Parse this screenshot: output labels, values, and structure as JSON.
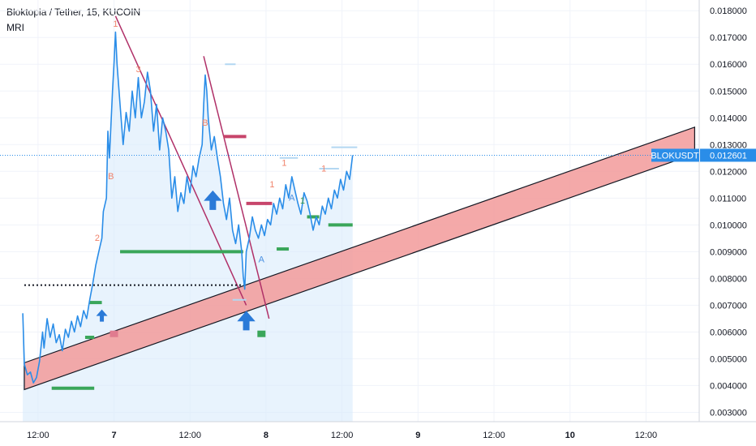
{
  "header": {
    "title": "Bloktopia / Tether, 15, KUCOIN",
    "indicator": "MRI"
  },
  "colors": {
    "price_line": "#2a8de8",
    "area_fill": "#d9ebfb",
    "channel_fill": "#f29a9a",
    "trendline": "#b03068",
    "green_level": "#3aa65a",
    "pink_level": "#c7456b",
    "light_blue_level": "#b3d7f2",
    "price_tag": "#2a8de8",
    "arrow_blue": "#2a7ad8",
    "label_orange": "#f0826a",
    "label_green": "#3a9a4a",
    "label_blue": "#4a90e2"
  },
  "price_tag": {
    "symbol": "BLOKUSDT",
    "value": "0.012601"
  },
  "chart_data": {
    "type": "line",
    "title": "Bloktopia / Tether, 15, KUCOIN",
    "xlabel": "",
    "ylabel": "",
    "x_ticks": [
      "12:00",
      "7",
      "12:00",
      "8",
      "12:00",
      "9",
      "12:00",
      "10",
      "12:00"
    ],
    "x_ticks_bold": [
      false,
      true,
      false,
      true,
      false,
      true,
      false,
      true,
      false
    ],
    "x_tick_values": [
      0.5,
      1.0,
      1.5,
      2.0,
      2.5,
      3.0,
      3.5,
      4.0,
      4.5
    ],
    "x_range": [
      0.25,
      4.85
    ],
    "y_ticks": [
      "0.018000",
      "0.017000",
      "0.016000",
      "0.015000",
      "0.014000",
      "0.013000",
      "0.012000",
      "0.011000",
      "0.010000",
      "0.009000",
      "0.008000",
      "0.007000",
      "0.006000",
      "0.005000",
      "0.004000",
      "0.003000"
    ],
    "ylim": [
      0.00265,
      0.0184
    ],
    "grid": true,
    "last_price": 0.012601,
    "series": [
      {
        "values": [
          [
            0.4,
            0.0067
          ],
          [
            0.41,
            0.0048
          ],
          [
            0.43,
            0.0044
          ],
          [
            0.45,
            0.0045
          ],
          [
            0.47,
            0.0041
          ],
          [
            0.49,
            0.0043
          ],
          [
            0.51,
            0.0049
          ],
          [
            0.53,
            0.006
          ],
          [
            0.54,
            0.0054
          ],
          [
            0.56,
            0.0065
          ],
          [
            0.58,
            0.0058
          ],
          [
            0.6,
            0.0063
          ],
          [
            0.62,
            0.0056
          ],
          [
            0.64,
            0.0059
          ],
          [
            0.66,
            0.0053
          ],
          [
            0.68,
            0.0061
          ],
          [
            0.7,
            0.0058
          ],
          [
            0.72,
            0.0064
          ],
          [
            0.74,
            0.006
          ],
          [
            0.76,
            0.0066
          ],
          [
            0.78,
            0.0062
          ],
          [
            0.8,
            0.0068
          ],
          [
            0.82,
            0.0065
          ],
          [
            0.84,
            0.0072
          ],
          [
            0.86,
            0.0078
          ],
          [
            0.88,
            0.0085
          ],
          [
            0.9,
            0.009
          ],
          [
            0.92,
            0.0095
          ],
          [
            0.93,
            0.0105
          ],
          [
            0.95,
            0.011
          ],
          [
            0.96,
            0.0135
          ],
          [
            0.97,
            0.0125
          ],
          [
            0.99,
            0.015
          ],
          [
            1.0,
            0.016
          ],
          [
            1.01,
            0.0172
          ],
          [
            1.02,
            0.016
          ],
          [
            1.04,
            0.0145
          ],
          [
            1.06,
            0.013
          ],
          [
            1.08,
            0.0142
          ],
          [
            1.1,
            0.0135
          ],
          [
            1.12,
            0.015
          ],
          [
            1.14,
            0.014
          ],
          [
            1.16,
            0.0155
          ],
          [
            1.18,
            0.014
          ],
          [
            1.2,
            0.0146
          ],
          [
            1.22,
            0.0157
          ],
          [
            1.24,
            0.015
          ],
          [
            1.26,
            0.0135
          ],
          [
            1.28,
            0.0145
          ],
          [
            1.3,
            0.0128
          ],
          [
            1.32,
            0.014
          ],
          [
            1.34,
            0.0135
          ],
          [
            1.36,
            0.0128
          ],
          [
            1.38,
            0.011
          ],
          [
            1.4,
            0.0118
          ],
          [
            1.42,
            0.0105
          ],
          [
            1.44,
            0.0112
          ],
          [
            1.46,
            0.0108
          ],
          [
            1.48,
            0.0118
          ],
          [
            1.5,
            0.0112
          ],
          [
            1.52,
            0.0122
          ],
          [
            1.54,
            0.0118
          ],
          [
            1.56,
            0.0125
          ],
          [
            1.58,
            0.013
          ],
          [
            1.59,
            0.0145
          ],
          [
            1.6,
            0.0156
          ],
          [
            1.61,
            0.015
          ],
          [
            1.62,
            0.014
          ],
          [
            1.64,
            0.0128
          ],
          [
            1.66,
            0.0133
          ],
          [
            1.68,
            0.0125
          ],
          [
            1.7,
            0.0118
          ],
          [
            1.72,
            0.0108
          ],
          [
            1.74,
            0.0102
          ],
          [
            1.76,
            0.011
          ],
          [
            1.78,
            0.0098
          ],
          [
            1.8,
            0.0093
          ],
          [
            1.82,
            0.01
          ],
          [
            1.84,
            0.009
          ],
          [
            1.85,
            0.0081
          ],
          [
            1.86,
            0.0076
          ],
          [
            1.87,
            0.009
          ],
          [
            1.89,
            0.0095
          ],
          [
            1.91,
            0.0103
          ],
          [
            1.93,
            0.0098
          ],
          [
            1.95,
            0.0095
          ],
          [
            1.97,
            0.01
          ],
          [
            1.99,
            0.0096
          ],
          [
            2.01,
            0.0102
          ],
          [
            2.03,
            0.01
          ],
          [
            2.05,
            0.0108
          ],
          [
            2.07,
            0.0104
          ],
          [
            2.09,
            0.011
          ],
          [
            2.11,
            0.0106
          ],
          [
            2.13,
            0.0115
          ],
          [
            2.15,
            0.011
          ],
          [
            2.17,
            0.0118
          ],
          [
            2.19,
            0.0113
          ],
          [
            2.21,
            0.0108
          ],
          [
            2.23,
            0.0104
          ],
          [
            2.25,
            0.0112
          ],
          [
            2.27,
            0.0109
          ],
          [
            2.29,
            0.0104
          ],
          [
            2.31,
            0.0098
          ],
          [
            2.33,
            0.0103
          ],
          [
            2.35,
            0.01
          ],
          [
            2.37,
            0.0107
          ],
          [
            2.39,
            0.0104
          ],
          [
            2.41,
            0.011
          ],
          [
            2.43,
            0.0106
          ],
          [
            2.45,
            0.0113
          ],
          [
            2.47,
            0.011
          ],
          [
            2.49,
            0.0117
          ],
          [
            2.51,
            0.0113
          ],
          [
            2.53,
            0.012
          ],
          [
            2.55,
            0.0117
          ],
          [
            2.57,
            0.0126
          ]
        ]
      }
    ],
    "annotations": [
      {
        "text": "1",
        "x": 1.01,
        "y": 0.0174,
        "color": "label_orange"
      },
      {
        "text": "3",
        "x": 1.16,
        "y": 0.0157,
        "color": "label_orange"
      },
      {
        "text": "B",
        "x": 0.98,
        "y": 0.0117,
        "color": "label_orange"
      },
      {
        "text": "2",
        "x": 0.89,
        "y": 0.0094,
        "color": "label_orange"
      },
      {
        "text": "B",
        "x": 1.6,
        "y": 0.0137,
        "color": "label_orange"
      },
      {
        "text": "1",
        "x": 2.04,
        "y": 0.0114,
        "color": "label_orange"
      },
      {
        "text": "1",
        "x": 2.12,
        "y": 0.0122,
        "color": "label_orange"
      },
      {
        "text": "1",
        "x": 2.24,
        "y": 0.0108,
        "color": "label_green"
      },
      {
        "text": "1",
        "x": 2.38,
        "y": 0.012,
        "color": "label_orange"
      },
      {
        "text": "A",
        "x": 1.97,
        "y": 0.0086,
        "color": "label_blue"
      },
      {
        "text": "A",
        "x": 2.17,
        "y": 0.0109,
        "color": "label_blue"
      }
    ]
  }
}
